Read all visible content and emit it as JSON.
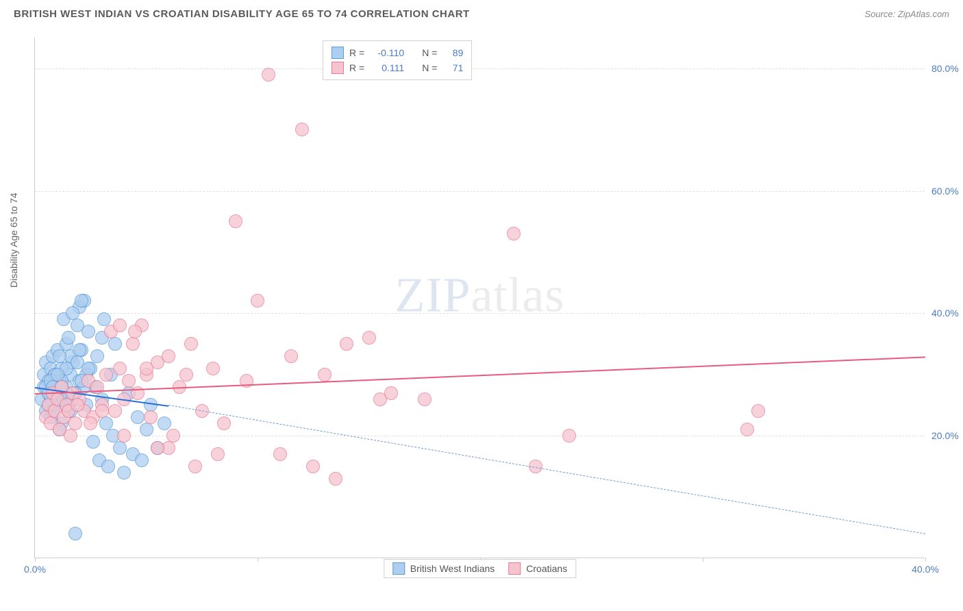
{
  "header": {
    "title": "BRITISH WEST INDIAN VS CROATIAN DISABILITY AGE 65 TO 74 CORRELATION CHART",
    "source": "Source: ZipAtlas.com"
  },
  "watermark": {
    "part1": "ZIP",
    "part2": "atlas"
  },
  "chart": {
    "type": "scatter",
    "ylabel": "Disability Age 65 to 74",
    "xlim": [
      0,
      40
    ],
    "ylim": [
      0,
      85
    ],
    "xticks": [
      0,
      10,
      20,
      30,
      40
    ],
    "xtick_labels": [
      "0.0%",
      "",
      "",
      "",
      "40.0%"
    ],
    "yticks": [
      20,
      40,
      60,
      80
    ],
    "ytick_labels": [
      "20.0%",
      "40.0%",
      "60.0%",
      "80.0%"
    ],
    "grid_color": "#e0e0e0",
    "background_color": "#ffffff",
    "label_fontsize": 14,
    "tick_color": "#4a7bc8",
    "series": [
      {
        "name": "British West Indians",
        "fill": "#aeceef",
        "stroke": "#5a9bd8",
        "marker_radius": 10,
        "R": "-0.110",
        "N": "89",
        "trend": {
          "x1": 0,
          "y1": 28,
          "x2": 6,
          "y2": 25,
          "color": "#2a6fd8",
          "dash": false,
          "width": 2
        },
        "trend_ext": {
          "x1": 6,
          "y1": 25,
          "x2": 40,
          "y2": 4,
          "color": "#6a9bd0",
          "dash": true,
          "width": 1.5
        },
        "points": [
          [
            0.3,
            26
          ],
          [
            0.4,
            28
          ],
          [
            0.4,
            30
          ],
          [
            0.5,
            24
          ],
          [
            0.5,
            32
          ],
          [
            0.6,
            27
          ],
          [
            0.6,
            29
          ],
          [
            0.7,
            31
          ],
          [
            0.7,
            26
          ],
          [
            0.8,
            33
          ],
          [
            0.8,
            28
          ],
          [
            0.9,
            25
          ],
          [
            0.9,
            30
          ],
          [
            1.0,
            34
          ],
          [
            1.0,
            27
          ],
          [
            1.1,
            29
          ],
          [
            1.2,
            31
          ],
          [
            1.2,
            22
          ],
          [
            1.3,
            26
          ],
          [
            1.4,
            35
          ],
          [
            1.4,
            28
          ],
          [
            1.5,
            24
          ],
          [
            1.5,
            36
          ],
          [
            1.6,
            30
          ],
          [
            1.7,
            32
          ],
          [
            1.8,
            27
          ],
          [
            1.9,
            38
          ],
          [
            2.0,
            29
          ],
          [
            2.0,
            41
          ],
          [
            2.1,
            34
          ],
          [
            2.2,
            42
          ],
          [
            2.3,
            25
          ],
          [
            2.4,
            37
          ],
          [
            2.5,
            31
          ],
          [
            2.6,
            19
          ],
          [
            2.7,
            28
          ],
          [
            2.8,
            33
          ],
          [
            2.9,
            16
          ],
          [
            3.0,
            26
          ],
          [
            3.1,
            39
          ],
          [
            3.2,
            22
          ],
          [
            3.3,
            15
          ],
          [
            3.4,
            30
          ],
          [
            3.5,
            20
          ],
          [
            3.6,
            35
          ],
          [
            3.8,
            18
          ],
          [
            4.0,
            14
          ],
          [
            4.2,
            27
          ],
          [
            4.4,
            17
          ],
          [
            4.6,
            23
          ],
          [
            4.8,
            16
          ],
          [
            5.0,
            21
          ],
          [
            5.2,
            25
          ],
          [
            5.5,
            18
          ],
          [
            5.8,
            22
          ],
          [
            1.8,
            4
          ],
          [
            3.0,
            36
          ],
          [
            1.3,
            39
          ],
          [
            2.1,
            42
          ],
          [
            0.7,
            23
          ],
          [
            1.1,
            21
          ],
          [
            0.6,
            25
          ],
          [
            1.6,
            33
          ],
          [
            0.9,
            27
          ],
          [
            2.3,
            30
          ],
          [
            1.7,
            40
          ],
          [
            0.5,
            28
          ],
          [
            1.0,
            26
          ],
          [
            1.4,
            31
          ],
          [
            2.0,
            34
          ],
          [
            0.8,
            24
          ],
          [
            1.2,
            29
          ],
          [
            1.9,
            32
          ],
          [
            0.6,
            27
          ],
          [
            1.5,
            25
          ],
          [
            2.2,
            28
          ],
          [
            0.9,
            30
          ],
          [
            1.8,
            27
          ],
          [
            1.1,
            33
          ],
          [
            0.7,
            29
          ],
          [
            1.3,
            26
          ],
          [
            2.4,
            31
          ],
          [
            1.6,
            24
          ],
          [
            0.8,
            28
          ],
          [
            1.0,
            30
          ],
          [
            1.4,
            27
          ],
          [
            2.1,
            29
          ],
          [
            1.7,
            26
          ],
          [
            1.2,
            28
          ]
        ]
      },
      {
        "name": "Croatians",
        "fill": "#f6c4ce",
        "stroke": "#e87a94",
        "marker_radius": 10,
        "R": "0.111",
        "N": "71",
        "trend": {
          "x1": 0,
          "y1": 27,
          "x2": 40,
          "y2": 33,
          "color": "#e85a7e",
          "dash": false,
          "width": 2
        },
        "points": [
          [
            0.5,
            23
          ],
          [
            0.6,
            25
          ],
          [
            0.7,
            22
          ],
          [
            0.8,
            27
          ],
          [
            0.9,
            24
          ],
          [
            1.0,
            26
          ],
          [
            1.1,
            21
          ],
          [
            1.2,
            28
          ],
          [
            1.3,
            23
          ],
          [
            1.4,
            25
          ],
          [
            1.5,
            24
          ],
          [
            1.6,
            20
          ],
          [
            1.7,
            27
          ],
          [
            1.8,
            22
          ],
          [
            2.0,
            26
          ],
          [
            2.2,
            24
          ],
          [
            2.4,
            29
          ],
          [
            2.6,
            23
          ],
          [
            2.8,
            28
          ],
          [
            3.0,
            25
          ],
          [
            3.2,
            30
          ],
          [
            3.4,
            37
          ],
          [
            3.6,
            24
          ],
          [
            3.8,
            31
          ],
          [
            4.0,
            26
          ],
          [
            4.2,
            29
          ],
          [
            4.4,
            35
          ],
          [
            4.6,
            27
          ],
          [
            4.8,
            38
          ],
          [
            5.0,
            30
          ],
          [
            5.5,
            32
          ],
          [
            6.0,
            18
          ],
          [
            6.5,
            28
          ],
          [
            7.0,
            35
          ],
          [
            7.5,
            24
          ],
          [
            8.0,
            31
          ],
          [
            8.5,
            22
          ],
          [
            9.0,
            55
          ],
          [
            9.5,
            29
          ],
          [
            10.0,
            42
          ],
          [
            10.5,
            79
          ],
          [
            11.0,
            17
          ],
          [
            11.5,
            33
          ],
          [
            12.0,
            70
          ],
          [
            12.5,
            15
          ],
          [
            13.0,
            30
          ],
          [
            13.5,
            13
          ],
          [
            14.0,
            35
          ],
          [
            15.0,
            36
          ],
          [
            15.5,
            26
          ],
          [
            16.0,
            27
          ],
          [
            17.5,
            26
          ],
          [
            21.5,
            53
          ],
          [
            22.5,
            15
          ],
          [
            24.0,
            20
          ],
          [
            32.0,
            21
          ],
          [
            32.5,
            24
          ],
          [
            5.5,
            18
          ],
          [
            6.2,
            20
          ],
          [
            7.2,
            15
          ],
          [
            8.2,
            17
          ],
          [
            4.5,
            37
          ],
          [
            3.8,
            38
          ],
          [
            6.0,
            33
          ],
          [
            5.0,
            31
          ],
          [
            2.5,
            22
          ],
          [
            3.0,
            24
          ],
          [
            1.9,
            25
          ],
          [
            4.0,
            20
          ],
          [
            5.2,
            23
          ],
          [
            6.8,
            30
          ]
        ]
      }
    ],
    "top_legend": {
      "rows": [
        {
          "swatch_fill": "#aeceef",
          "swatch_stroke": "#5a9bd8",
          "r_label": "R =",
          "r_val": "-0.110",
          "n_label": "N =",
          "n_val": "89"
        },
        {
          "swatch_fill": "#f6c4ce",
          "swatch_stroke": "#e87a94",
          "r_label": "R =",
          "r_val": "0.111",
          "n_label": "N =",
          "n_val": "71"
        }
      ]
    },
    "bottom_legend": {
      "items": [
        {
          "swatch_fill": "#aeceef",
          "swatch_stroke": "#5a9bd8",
          "label": "British West Indians"
        },
        {
          "swatch_fill": "#f6c4ce",
          "swatch_stroke": "#e87a94",
          "label": "Croatians"
        }
      ]
    }
  }
}
